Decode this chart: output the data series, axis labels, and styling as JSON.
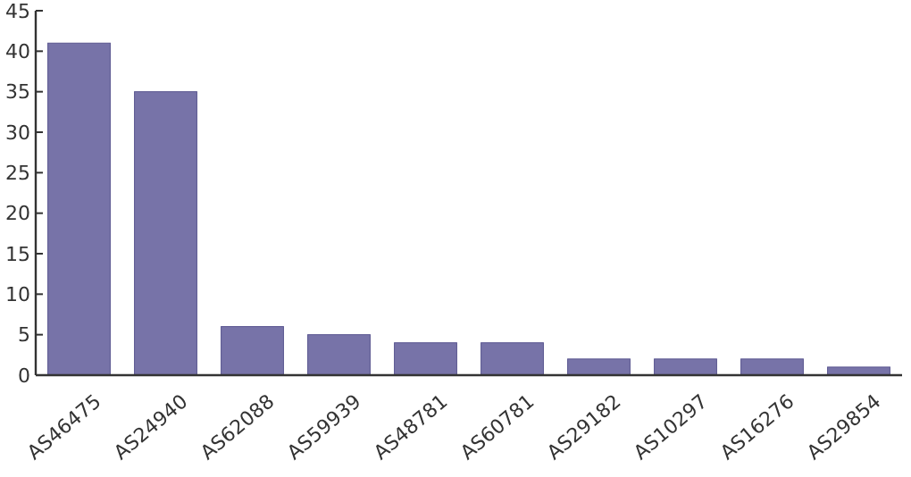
{
  "chart_data": {
    "type": "bar",
    "categories": [
      "AS46475",
      "AS24940",
      "AS62088",
      "AS59939",
      "AS48781",
      "AS60781",
      "AS29182",
      "AS10297",
      "AS16276",
      "AS29854"
    ],
    "values": [
      41,
      35,
      6,
      5,
      4,
      4,
      2,
      2,
      2,
      1
    ],
    "color": "#7773a8",
    "ylim": [
      0,
      45
    ],
    "yticks": [
      0,
      5,
      10,
      15,
      20,
      25,
      30,
      35,
      40,
      45
    ],
    "grid": false
  }
}
